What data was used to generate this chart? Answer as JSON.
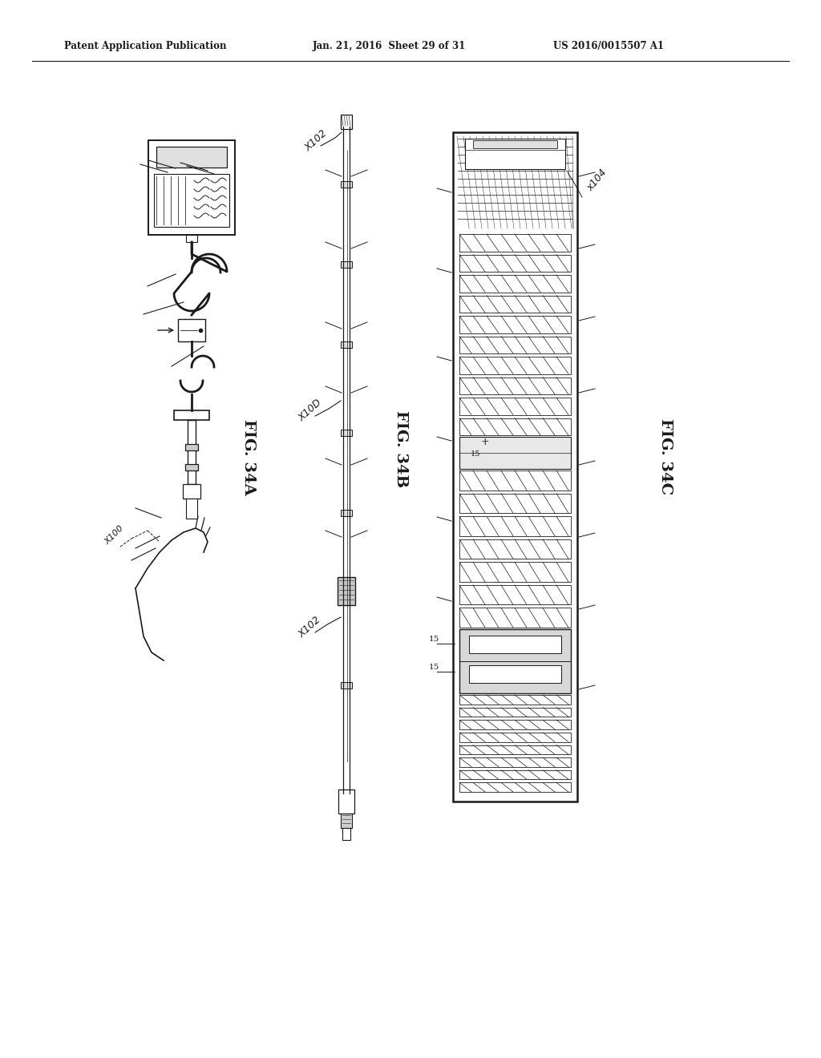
{
  "bg_color": "#ffffff",
  "header_left": "Patent Application Publication",
  "header_mid": "Jan. 21, 2016  Sheet 29 of 31",
  "header_right": "US 2016/0015507 A1",
  "text_color": "#1a1a1a",
  "line_color": "#1a1a1a",
  "figsize": [
    10.24,
    13.2
  ],
  "dpi": 100,
  "fig34a_label": "FIG. 34A",
  "fig34b_label": "FIG. 34B",
  "fig34c_label": "FIG. 34C",
  "label_x100": "X100",
  "label_x102_top": "X102",
  "label_x102_bot": "X102",
  "label_x10d": "X10D",
  "label_x104": "x104"
}
